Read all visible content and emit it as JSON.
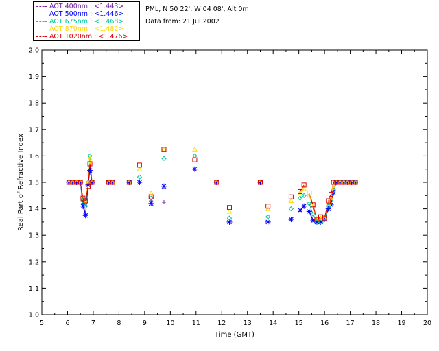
{
  "header": {
    "location": "PML, N 50 22', W 04 08', Alt 0m",
    "date": "Data from: 21 Jul 2002"
  },
  "chart_data": {
    "type": "scatter",
    "xlabel": "Time (GMT)",
    "ylabel": "Real Part of Refractive Index",
    "xlim": [
      5,
      20
    ],
    "ylim": [
      1.0,
      2.0
    ],
    "xticks": [
      "5",
      "6",
      "7",
      "8",
      "9",
      "10",
      "11",
      "12",
      "13",
      "14",
      "15",
      "16",
      "17",
      "18",
      "19",
      "20"
    ],
    "yticks": [
      "1.0",
      "1.1",
      "1.2",
      "1.3",
      "1.4",
      "1.5",
      "1.6",
      "1.7",
      "1.8",
      "1.9",
      "2.0"
    ],
    "legend_position": "top-left",
    "series": [
      {
        "name": "AOT  400nm : <1.443>",
        "color": "#7b1fa2",
        "marker": "plus",
        "points": [
          [
            6.05,
            1.5
          ],
          [
            6.2,
            1.5
          ],
          [
            6.35,
            1.5
          ],
          [
            6.5,
            1.5
          ],
          [
            6.6,
            1.42
          ],
          [
            6.7,
            1.38
          ],
          [
            6.8,
            1.49
          ],
          [
            6.87,
            1.55
          ],
          [
            6.95,
            1.5
          ],
          [
            7.6,
            1.5
          ],
          [
            7.75,
            1.5
          ],
          [
            8.4,
            1.5
          ],
          [
            8.8,
            1.5
          ],
          [
            9.25,
            1.43
          ],
          [
            9.75,
            1.425
          ],
          [
            10.95,
            1.55
          ],
          [
            11.8,
            1.5
          ],
          [
            12.3,
            1.35
          ],
          [
            13.5,
            1.5
          ],
          [
            13.8,
            1.35
          ],
          [
            14.7,
            1.36
          ],
          [
            15.05,
            1.39
          ],
          [
            15.2,
            1.41
          ],
          [
            15.4,
            1.39
          ],
          [
            15.55,
            1.36
          ],
          [
            15.7,
            1.35
          ],
          [
            15.85,
            1.35
          ],
          [
            16.0,
            1.36
          ],
          [
            16.15,
            1.4
          ],
          [
            16.25,
            1.42
          ],
          [
            16.35,
            1.46
          ],
          [
            16.45,
            1.5
          ],
          [
            16.6,
            1.5
          ],
          [
            16.75,
            1.5
          ],
          [
            16.9,
            1.5
          ],
          [
            17.05,
            1.5
          ],
          [
            17.2,
            1.5
          ]
        ]
      },
      {
        "name": "AOT  500nm : <1.446>",
        "color": "#0000ff",
        "marker": "asterisk",
        "points": [
          [
            6.05,
            1.5
          ],
          [
            6.2,
            1.5
          ],
          [
            6.35,
            1.5
          ],
          [
            6.5,
            1.5
          ],
          [
            6.6,
            1.41
          ],
          [
            6.7,
            1.375
          ],
          [
            6.8,
            1.49
          ],
          [
            6.87,
            1.545
          ],
          [
            6.95,
            1.5
          ],
          [
            7.6,
            1.5
          ],
          [
            7.75,
            1.5
          ],
          [
            8.4,
            1.5
          ],
          [
            8.8,
            1.5
          ],
          [
            9.25,
            1.42
          ],
          [
            9.75,
            1.485
          ],
          [
            10.95,
            1.55
          ],
          [
            11.8,
            1.5
          ],
          [
            12.3,
            1.35
          ],
          [
            13.5,
            1.5
          ],
          [
            13.8,
            1.35
          ],
          [
            14.7,
            1.36
          ],
          [
            15.05,
            1.395
          ],
          [
            15.2,
            1.41
          ],
          [
            15.4,
            1.39
          ],
          [
            15.55,
            1.355
          ],
          [
            15.7,
            1.35
          ],
          [
            15.85,
            1.35
          ],
          [
            16.0,
            1.36
          ],
          [
            16.15,
            1.4
          ],
          [
            16.25,
            1.415
          ],
          [
            16.35,
            1.46
          ],
          [
            16.45,
            1.5
          ],
          [
            16.6,
            1.5
          ],
          [
            16.75,
            1.5
          ],
          [
            16.9,
            1.5
          ],
          [
            17.05,
            1.5
          ],
          [
            17.2,
            1.5
          ]
        ]
      },
      {
        "name": "AOT  675nm : <1.468>",
        "color": "#00c8a0",
        "marker": "diamond",
        "points": [
          [
            6.05,
            1.5
          ],
          [
            6.2,
            1.5
          ],
          [
            6.35,
            1.5
          ],
          [
            6.5,
            1.5
          ],
          [
            6.6,
            1.43
          ],
          [
            6.7,
            1.41
          ],
          [
            6.8,
            1.5
          ],
          [
            6.87,
            1.6
          ],
          [
            6.95,
            1.5
          ],
          [
            7.6,
            1.5
          ],
          [
            7.75,
            1.5
          ],
          [
            8.4,
            1.5
          ],
          [
            8.8,
            1.52
          ],
          [
            9.25,
            1.44
          ],
          [
            9.75,
            1.59
          ],
          [
            10.95,
            1.6
          ],
          [
            11.8,
            1.5
          ],
          [
            12.3,
            1.365
          ],
          [
            13.5,
            1.5
          ],
          [
            13.8,
            1.37
          ],
          [
            14.7,
            1.4
          ],
          [
            15.05,
            1.44
          ],
          [
            15.2,
            1.45
          ],
          [
            15.4,
            1.42
          ],
          [
            15.55,
            1.38
          ],
          [
            15.7,
            1.35
          ],
          [
            15.85,
            1.35
          ],
          [
            16.0,
            1.36
          ],
          [
            16.15,
            1.41
          ],
          [
            16.25,
            1.43
          ],
          [
            16.35,
            1.47
          ],
          [
            16.45,
            1.5
          ],
          [
            16.6,
            1.5
          ],
          [
            16.75,
            1.5
          ],
          [
            16.9,
            1.5
          ],
          [
            17.05,
            1.5
          ],
          [
            17.2,
            1.5
          ]
        ]
      },
      {
        "name": "AOT  870nm : <1.482>",
        "color": "#ffd700",
        "marker": "triangle",
        "points": [
          [
            6.05,
            1.5
          ],
          [
            6.2,
            1.5
          ],
          [
            6.35,
            1.5
          ],
          [
            6.5,
            1.5
          ],
          [
            6.6,
            1.44
          ],
          [
            6.7,
            1.43
          ],
          [
            6.8,
            1.5
          ],
          [
            6.87,
            1.59
          ],
          [
            6.95,
            1.5
          ],
          [
            7.6,
            1.5
          ],
          [
            7.75,
            1.5
          ],
          [
            8.4,
            1.5
          ],
          [
            8.8,
            1.55
          ],
          [
            9.25,
            1.46
          ],
          [
            9.75,
            1.625
          ],
          [
            10.95,
            1.625
          ],
          [
            11.8,
            1.5
          ],
          [
            12.3,
            1.39
          ],
          [
            13.5,
            1.5
          ],
          [
            13.8,
            1.4
          ],
          [
            14.7,
            1.43
          ],
          [
            15.05,
            1.46
          ],
          [
            15.2,
            1.475
          ],
          [
            15.4,
            1.45
          ],
          [
            15.55,
            1.41
          ],
          [
            15.7,
            1.36
          ],
          [
            15.85,
            1.365
          ],
          [
            16.0,
            1.365
          ],
          [
            16.15,
            1.42
          ],
          [
            16.25,
            1.44
          ],
          [
            16.35,
            1.48
          ],
          [
            16.45,
            1.5
          ],
          [
            16.6,
            1.5
          ],
          [
            16.75,
            1.5
          ],
          [
            16.9,
            1.5
          ],
          [
            17.05,
            1.5
          ],
          [
            17.2,
            1.5
          ]
        ]
      },
      {
        "name": "AOT 1020nm : <1.476>",
        "color": "#dd0000",
        "marker": "square",
        "points": [
          [
            6.05,
            1.5
          ],
          [
            6.2,
            1.5
          ],
          [
            6.35,
            1.5
          ],
          [
            6.5,
            1.5
          ],
          [
            6.6,
            1.44
          ],
          [
            6.7,
            1.43
          ],
          [
            6.8,
            1.485
          ],
          [
            6.87,
            1.57
          ],
          [
            6.95,
            1.5
          ],
          [
            7.6,
            1.5
          ],
          [
            7.75,
            1.5
          ],
          [
            8.4,
            1.5
          ],
          [
            8.8,
            1.565
          ],
          [
            9.25,
            1.445
          ],
          [
            9.75,
            1.625
          ],
          [
            10.95,
            1.585
          ],
          [
            11.8,
            1.5
          ],
          [
            12.3,
            1.405
          ],
          [
            13.5,
            1.5
          ],
          [
            13.8,
            1.41
          ],
          [
            14.7,
            1.445
          ],
          [
            15.05,
            1.465
          ],
          [
            15.2,
            1.49
          ],
          [
            15.4,
            1.46
          ],
          [
            15.55,
            1.415
          ],
          [
            15.7,
            1.36
          ],
          [
            15.85,
            1.37
          ],
          [
            16.0,
            1.365
          ],
          [
            16.15,
            1.43
          ],
          [
            16.25,
            1.455
          ],
          [
            16.35,
            1.5
          ],
          [
            16.45,
            1.5
          ],
          [
            16.6,
            1.5
          ],
          [
            16.75,
            1.5
          ],
          [
            16.9,
            1.5
          ],
          [
            17.05,
            1.5
          ],
          [
            17.2,
            1.5
          ]
        ]
      }
    ]
  }
}
